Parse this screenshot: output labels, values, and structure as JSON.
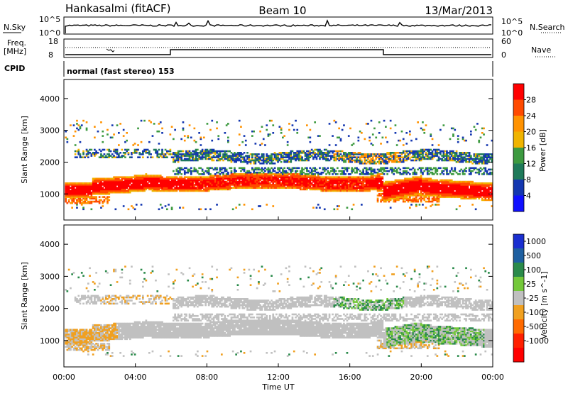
{
  "header": {
    "station": "Hankasalmi (fitACF)",
    "beam": "Beam 10",
    "date": "13/Mar/2013"
  },
  "noise_panel": {
    "left_label": "N.Sky",
    "left_ticks": [
      "10^5",
      "10^0"
    ],
    "right_ticks": [
      "10^5",
      "10^0"
    ],
    "right_label": "N.Search"
  },
  "freq_panel": {
    "left_label_line1": "Freq.",
    "left_label_line2": "[MHz]",
    "left_ticks": [
      "18",
      "8"
    ],
    "right_ticks": [
      "60",
      "0"
    ],
    "right_label": "Nave"
  },
  "cpid_panel": {
    "label": "CPID",
    "text": "normal (fast stereo) 153"
  },
  "time_axis": {
    "ticks": [
      "00:00",
      "04:00",
      "08:00",
      "12:00",
      "16:00",
      "20:00",
      "00:00"
    ],
    "label": "Time UT"
  },
  "chart_data": [
    {
      "type": "heatmap",
      "title": "",
      "ylabel": "Slant Range [km]",
      "xlabel": "Time UT",
      "x_range_hours": [
        0,
        24
      ],
      "ylim": [
        180,
        4600
      ],
      "yticks": [
        1000,
        2000,
        3000,
        4000
      ],
      "colorbar": {
        "label": "Power [dB]",
        "ticks": [
          "28",
          "24",
          "20",
          "16",
          "12",
          "8",
          "4"
        ],
        "colors": [
          "#ff0000",
          "#ff4a00",
          "#ff9200",
          "#f0b400",
          "#3d9a40",
          "#1f7a5a",
          "#1437b0",
          "#1010ff"
        ]
      }
    },
    {
      "type": "heatmap",
      "title": "",
      "ylabel": "Slant Range [km]",
      "xlabel": "Time UT",
      "x_range_hours": [
        0,
        24
      ],
      "ylim": [
        180,
        4600
      ],
      "yticks": [
        1000,
        2000,
        3000,
        4000
      ],
      "colorbar": {
        "label": "Velocity [m s^-1]",
        "ticks": [
          "1000",
          "500",
          "100",
          "25",
          "-25",
          "-100",
          "-500",
          "-1000"
        ],
        "colors": [
          "#1a2fd0",
          "#1e5fa0",
          "#2a8a4a",
          "#74c83a",
          "#c0c0c0",
          "#f0a020",
          "#ff6a00",
          "#ff2000",
          "#ff0000"
        ]
      }
    }
  ]
}
